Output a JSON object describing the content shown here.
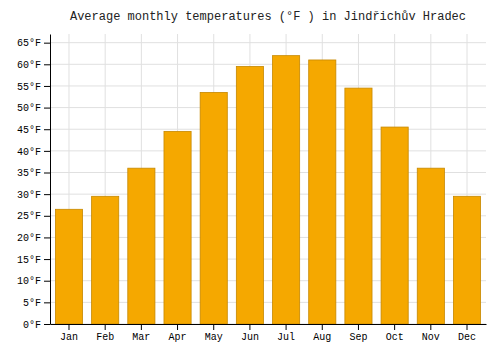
{
  "chart_data": {
    "type": "bar",
    "title": "Average monthly temperatures (°F ) in Jindřichův Hradec",
    "categories": [
      "Jan",
      "Feb",
      "Mar",
      "Apr",
      "May",
      "Jun",
      "Jul",
      "Aug",
      "Sep",
      "Oct",
      "Nov",
      "Dec"
    ],
    "values": [
      26.5,
      29.5,
      36,
      44.5,
      53.5,
      59.5,
      62,
      61,
      54.5,
      45.5,
      36,
      29.5
    ],
    "color": "#F5A800",
    "ylim": [
      0,
      67
    ],
    "yticks": [
      {
        "value": 0,
        "label": "0°F"
      },
      {
        "value": 5,
        "label": "5°F"
      },
      {
        "value": 10,
        "label": "10°F"
      },
      {
        "value": 15,
        "label": "15°F"
      },
      {
        "value": 20,
        "label": "20°F"
      },
      {
        "value": 25,
        "label": "25°F"
      },
      {
        "value": 30,
        "label": "30°F"
      },
      {
        "value": 35,
        "label": "35°F"
      },
      {
        "value": 40,
        "label": "40°F"
      },
      {
        "value": 45,
        "label": "45°F"
      },
      {
        "value": 50,
        "label": "50°F"
      },
      {
        "value": 55,
        "label": "55°F"
      },
      {
        "value": 60,
        "label": "60°F"
      },
      {
        "value": 65,
        "label": "65°F"
      }
    ],
    "grid": true
  }
}
